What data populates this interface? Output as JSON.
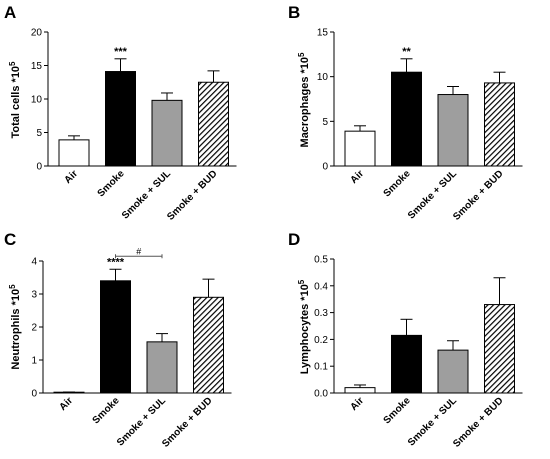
{
  "chart_data": [
    {
      "type": "bar",
      "panel": "A",
      "ylabel": "Total cells *10^5",
      "ylim": [
        0,
        20
      ],
      "yticks": [
        "0",
        "5",
        "10",
        "15",
        "20"
      ],
      "categories": [
        "Air",
        "Smoke",
        "Smoke + SUL",
        "Smoke + BUD"
      ],
      "values": [
        3.9,
        14.1,
        9.8,
        12.5
      ],
      "errors": [
        0.6,
        1.9,
        1.1,
        1.7
      ],
      "annotations": [
        {
          "category": "Smoke",
          "text": "***"
        }
      ]
    },
    {
      "type": "bar",
      "panel": "B",
      "ylabel": "Macrophages *10^5",
      "ylim": [
        0,
        15
      ],
      "yticks": [
        "0",
        "5",
        "10",
        "15"
      ],
      "categories": [
        "Air",
        "Smoke",
        "Smoke + SUL",
        "Smoke + BUD"
      ],
      "values": [
        3.9,
        10.5,
        8.0,
        9.3
      ],
      "errors": [
        0.6,
        1.5,
        0.9,
        1.2
      ],
      "annotations": [
        {
          "category": "Smoke",
          "text": "**"
        }
      ]
    },
    {
      "type": "bar",
      "panel": "C",
      "ylabel": "Neutrophils *10^5",
      "ylim": [
        0,
        4
      ],
      "yticks": [
        "0",
        "1",
        "2",
        "3",
        "4"
      ],
      "categories": [
        "Air",
        "Smoke",
        "Smoke + SUL",
        "Smoke + BUD"
      ],
      "values": [
        0.02,
        3.4,
        1.55,
        2.9
      ],
      "errors": [
        0.01,
        0.35,
        0.25,
        0.55
      ],
      "annotations": [
        {
          "category": "Smoke",
          "text": "****"
        },
        {
          "from": "Smoke",
          "to": "Smoke + SUL",
          "text": "#"
        }
      ]
    },
    {
      "type": "bar",
      "panel": "D",
      "ylabel": "Lymphocytes *10^5",
      "ylim": [
        0,
        0.5
      ],
      "yticks": [
        "0.0",
        "0.1",
        "0.2",
        "0.3",
        "0.4",
        "0.5"
      ],
      "categories": [
        "Air",
        "Smoke",
        "Smoke + SUL",
        "Smoke + BUD"
      ],
      "values": [
        0.02,
        0.215,
        0.16,
        0.33
      ],
      "errors": [
        0.01,
        0.06,
        0.035,
        0.1
      ],
      "annotations": []
    }
  ],
  "styles": {
    "fills": [
      "white",
      "black",
      "gray",
      "hatched"
    ],
    "colors": {
      "black": "#000000",
      "gray": "#9e9e9e",
      "white": "#ffffff"
    }
  },
  "panels": [
    "A",
    "B",
    "C",
    "D"
  ],
  "ylabel_parts": [
    {
      "main": "Total cells *10",
      "sup": "5"
    },
    {
      "main": "Macrophages *10",
      "sup": "5"
    },
    {
      "main": "Neutrophils *10",
      "sup": "5"
    },
    {
      "main": "Lymphocytes *10",
      "sup": "5"
    }
  ]
}
